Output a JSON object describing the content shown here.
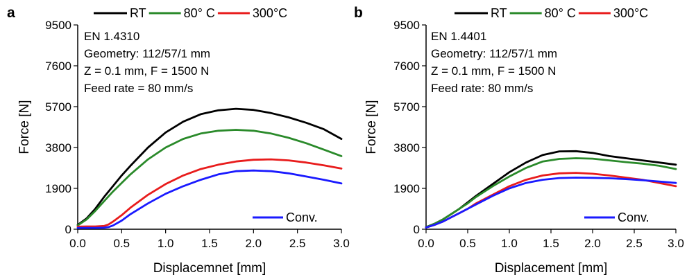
{
  "chart_data": [
    {
      "type": "line",
      "panel_label": "a",
      "xlabel": "Displacemnet [mm]",
      "ylabel": "Force [N]",
      "xlim": [
        0,
        3
      ],
      "ylim": [
        0,
        9500
      ],
      "xticks": [
        "0.0",
        "0.5",
        "1.0",
        "1.5",
        "2.0",
        "2.5",
        "3.0"
      ],
      "yticks": [
        "0",
        "1900",
        "3800",
        "5700",
        "7600",
        "9500"
      ],
      "annotations": [
        "EN 1.4310",
        "Geometry: 112/57/1 mm",
        "Z = 0.1 mm, F = 1500 N",
        "Feed rate = 80 mm/s"
      ],
      "legend_top": [
        "RT",
        "80° C",
        "300°C"
      ],
      "legend_inner": [
        "Conv."
      ],
      "series": [
        {
          "name": "RT",
          "color": "#000000",
          "x": [
            0,
            0.1,
            0.2,
            0.3,
            0.4,
            0.5,
            0.6,
            0.8,
            1.0,
            1.2,
            1.4,
            1.6,
            1.8,
            2.0,
            2.2,
            2.4,
            2.6,
            2.8,
            3.0
          ],
          "y": [
            200,
            500,
            950,
            1500,
            2000,
            2500,
            2950,
            3800,
            4500,
            5000,
            5350,
            5530,
            5600,
            5550,
            5400,
            5200,
            4950,
            4650,
            4200
          ]
        },
        {
          "name": "80° C",
          "color": "#2a8a2a",
          "x": [
            0,
            0.1,
            0.2,
            0.3,
            0.4,
            0.5,
            0.6,
            0.8,
            1.0,
            1.2,
            1.4,
            1.6,
            1.8,
            2.0,
            2.2,
            2.4,
            2.6,
            2.8,
            3.0
          ],
          "y": [
            180,
            450,
            850,
            1300,
            1750,
            2150,
            2550,
            3250,
            3800,
            4200,
            4450,
            4580,
            4620,
            4580,
            4450,
            4250,
            4000,
            3700,
            3400
          ]
        },
        {
          "name": "300°C",
          "color": "#e81c1c",
          "x": [
            0,
            0.1,
            0.2,
            0.3,
            0.35,
            0.4,
            0.5,
            0.6,
            0.8,
            1.0,
            1.2,
            1.4,
            1.6,
            1.8,
            2.0,
            2.2,
            2.4,
            2.6,
            2.8,
            3.0
          ],
          "y": [
            120,
            130,
            130,
            150,
            220,
            350,
            650,
            1000,
            1600,
            2100,
            2500,
            2800,
            3000,
            3150,
            3230,
            3250,
            3200,
            3100,
            2970,
            2820
          ]
        },
        {
          "name": "Conv.",
          "color": "#1a1aff",
          "x": [
            0,
            0.1,
            0.2,
            0.3,
            0.35,
            0.4,
            0.5,
            0.6,
            0.8,
            1.0,
            1.2,
            1.4,
            1.6,
            1.8,
            2.0,
            2.2,
            2.4,
            2.6,
            2.8,
            3.0
          ],
          "y": [
            60,
            60,
            60,
            70,
            100,
            170,
            400,
            700,
            1200,
            1650,
            2000,
            2300,
            2550,
            2700,
            2730,
            2700,
            2600,
            2450,
            2300,
            2130
          ]
        }
      ]
    },
    {
      "type": "line",
      "panel_label": "b",
      "xlabel": "Displacement [mm]",
      "ylabel": "Force [N]",
      "xlim": [
        0,
        3
      ],
      "ylim": [
        0,
        9500
      ],
      "xticks": [
        "0.0",
        "0.5",
        "1.0",
        "1.5",
        "2.0",
        "2.5",
        "3.0"
      ],
      "yticks": [
        "0",
        "1900",
        "3800",
        "5700",
        "7600",
        "9500"
      ],
      "annotations": [
        "EN 1.4401",
        "Geometry: 112/57/1 mm",
        "Z = 0.1 mm, F = 1500 N",
        "Feed rate: 80 mm/s"
      ],
      "legend_top": [
        "RT",
        "80° C",
        "300°C"
      ],
      "legend_inner": [
        "Conv."
      ],
      "series": [
        {
          "name": "RT",
          "color": "#000000",
          "x": [
            0,
            0.1,
            0.2,
            0.3,
            0.4,
            0.5,
            0.6,
            0.8,
            1.0,
            1.2,
            1.4,
            1.6,
            1.8,
            2.0,
            2.2,
            2.4,
            2.6,
            2.8,
            3.0
          ],
          "y": [
            100,
            250,
            450,
            700,
            950,
            1250,
            1550,
            2100,
            2650,
            3100,
            3450,
            3620,
            3630,
            3550,
            3400,
            3300,
            3200,
            3100,
            3000
          ]
        },
        {
          "name": "80° C",
          "color": "#2a8a2a",
          "x": [
            0,
            0.1,
            0.2,
            0.3,
            0.4,
            0.5,
            0.6,
            0.8,
            1.0,
            1.2,
            1.4,
            1.6,
            1.8,
            2.0,
            2.2,
            2.4,
            2.6,
            2.8,
            3.0
          ],
          "y": [
            100,
            250,
            450,
            700,
            950,
            1200,
            1500,
            2000,
            2450,
            2850,
            3150,
            3270,
            3300,
            3280,
            3200,
            3120,
            3050,
            2950,
            2800
          ]
        },
        {
          "name": "300°C",
          "color": "#e81c1c",
          "x": [
            0,
            0.1,
            0.2,
            0.3,
            0.4,
            0.5,
            0.6,
            0.8,
            1.0,
            1.2,
            1.4,
            1.6,
            1.8,
            2.0,
            2.2,
            2.4,
            2.6,
            2.8,
            3.0
          ],
          "y": [
            80,
            200,
            350,
            550,
            750,
            950,
            1200,
            1600,
            2000,
            2300,
            2500,
            2600,
            2620,
            2580,
            2500,
            2400,
            2300,
            2150,
            2000
          ]
        },
        {
          "name": "Conv.",
          "color": "#1a1aff",
          "x": [
            0,
            0.1,
            0.2,
            0.3,
            0.4,
            0.5,
            0.6,
            0.8,
            1.0,
            1.2,
            1.4,
            1.6,
            1.8,
            2.0,
            2.2,
            2.4,
            2.6,
            2.8,
            3.0
          ],
          "y": [
            80,
            200,
            350,
            550,
            750,
            950,
            1150,
            1550,
            1900,
            2150,
            2300,
            2380,
            2400,
            2390,
            2370,
            2330,
            2280,
            2220,
            2150
          ]
        }
      ]
    }
  ]
}
